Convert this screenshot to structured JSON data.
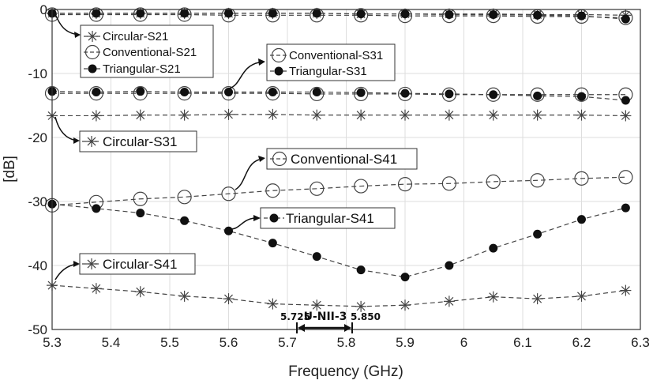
{
  "chart_data": {
    "type": "line",
    "xlabel": "Frequency (GHz)",
    "ylabel": "[dB]",
    "xlim": [
      5.3,
      6.3
    ],
    "ylim": [
      -50,
      0
    ],
    "xticks": [
      "5.3",
      "5.4",
      "5.5",
      "5.6",
      "5.7",
      "5.8",
      "5.9",
      "6",
      "6.1",
      "6.2",
      "6.3"
    ],
    "yticks": [
      "0",
      "-10",
      "-20",
      "-30",
      "-40",
      "-50"
    ],
    "grid": true,
    "x": [
      5.3,
      5.375,
      5.45,
      5.525,
      5.6,
      5.675,
      5.75,
      5.825,
      5.9,
      5.975,
      6.05,
      6.125,
      6.2,
      6.275
    ],
    "series": [
      {
        "name": "Circular-S21",
        "marker": "star",
        "values": [
          -0.6,
          -0.6,
          -0.6,
          -0.6,
          -0.6,
          -0.6,
          -0.6,
          -0.7,
          -0.7,
          -0.7,
          -0.7,
          -0.8,
          -0.8,
          -0.9
        ]
      },
      {
        "name": "Conventional-S21",
        "marker": "circle-open",
        "values": [
          -0.8,
          -0.8,
          -0.8,
          -0.8,
          -0.9,
          -0.9,
          -0.9,
          -0.9,
          -1.0,
          -1.0,
          -1.0,
          -1.1,
          -1.1,
          -1.3
        ]
      },
      {
        "name": "Triangular-S21",
        "marker": "circle-filled",
        "values": [
          -0.6,
          -0.6,
          -0.6,
          -0.6,
          -0.6,
          -0.6,
          -0.6,
          -0.7,
          -0.7,
          -0.8,
          -0.8,
          -0.9,
          -1.0,
          -1.5
        ]
      },
      {
        "name": "Conventional-S31",
        "marker": "circle-open",
        "values": [
          -13.1,
          -13.1,
          -13.1,
          -13.1,
          -13.1,
          -13.1,
          -13.2,
          -13.2,
          -13.2,
          -13.3,
          -13.3,
          -13.3,
          -13.3,
          -13.3
        ]
      },
      {
        "name": "Triangular-S31",
        "marker": "circle-filled",
        "values": [
          -12.8,
          -12.9,
          -12.8,
          -12.9,
          -12.9,
          -12.9,
          -12.9,
          -13.0,
          -13.1,
          -13.2,
          -13.3,
          -13.5,
          -13.6,
          -14.2
        ]
      },
      {
        "name": "Circular-S31",
        "marker": "star",
        "values": [
          -16.6,
          -16.6,
          -16.5,
          -16.5,
          -16.4,
          -16.4,
          -16.5,
          -16.5,
          -16.5,
          -16.5,
          -16.5,
          -16.5,
          -16.5,
          -16.6
        ]
      },
      {
        "name": "Conventional-S41",
        "marker": "circle-open",
        "values": [
          -30.6,
          -30.1,
          -29.6,
          -29.3,
          -28.8,
          -28.3,
          -28.0,
          -27.6,
          -27.3,
          -27.2,
          -26.9,
          -26.7,
          -26.4,
          -26.2
        ]
      },
      {
        "name": "Triangular-S41",
        "marker": "circle-filled",
        "values": [
          -30.4,
          -31.1,
          -31.8,
          -33.0,
          -34.6,
          -36.5,
          -38.6,
          -40.7,
          -41.8,
          -40.0,
          -37.3,
          -35.1,
          -32.8,
          -31.0
        ]
      },
      {
        "name": "Circular-S41",
        "marker": "star",
        "values": [
          -43.1,
          -43.6,
          -44.1,
          -44.8,
          -45.2,
          -46.0,
          -46.2,
          -46.4,
          -46.2,
          -45.6,
          -44.9,
          -45.2,
          -44.8,
          -43.9
        ]
      }
    ],
    "legend": {
      "placement": "top-left",
      "entries": [
        "Circular-S21",
        "Conventional-S21",
        "Triangular-S21"
      ]
    },
    "legend_s31": {
      "entries": [
        "Conventional-S31",
        "Triangular-S31"
      ]
    },
    "labels": {
      "circular_s31": "Circular-S31",
      "conventional_s41": "Conventional-S41",
      "triangular_s41": "Triangular-S41",
      "circular_s41": "Circular-S41"
    },
    "band": {
      "label": "U-NII-3",
      "start_label": "5.725",
      "end_label": "5.850",
      "start": 5.725,
      "end": 5.85
    }
  }
}
